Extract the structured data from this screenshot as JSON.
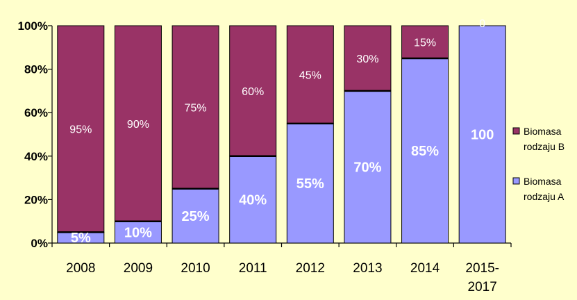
{
  "chart_data": {
    "type": "bar",
    "stacked": true,
    "percent_stacked": true,
    "categories": [
      [
        "2008"
      ],
      [
        "2009"
      ],
      [
        "2010"
      ],
      [
        "2011"
      ],
      [
        "2012"
      ],
      [
        "2013"
      ],
      [
        "2014"
      ],
      [
        "2015-",
        "2017"
      ]
    ],
    "series": [
      {
        "name": [
          "Biomasa",
          "rodzaju A"
        ],
        "color": "#9999ff",
        "values": [
          5,
          10,
          25,
          40,
          55,
          70,
          85,
          100
        ],
        "labels": [
          "5%",
          "10%",
          "25%",
          "40%",
          "55%",
          "70%",
          "85%",
          "100"
        ]
      },
      {
        "name": [
          "Biomasa",
          "rodzaju B"
        ],
        "color": "#993366",
        "values": [
          95,
          90,
          75,
          60,
          45,
          30,
          15,
          0
        ],
        "labels": [
          "95%",
          "90%",
          "75%",
          "60%",
          "45%",
          "30%",
          "15%",
          "0"
        ]
      }
    ],
    "y_ticks": [
      "0%",
      "20%",
      "40%",
      "60%",
      "80%",
      "100%"
    ],
    "ylim": [
      0,
      100
    ],
    "grid": false,
    "legend_position": "right",
    "background_color": "#ffffcc"
  }
}
